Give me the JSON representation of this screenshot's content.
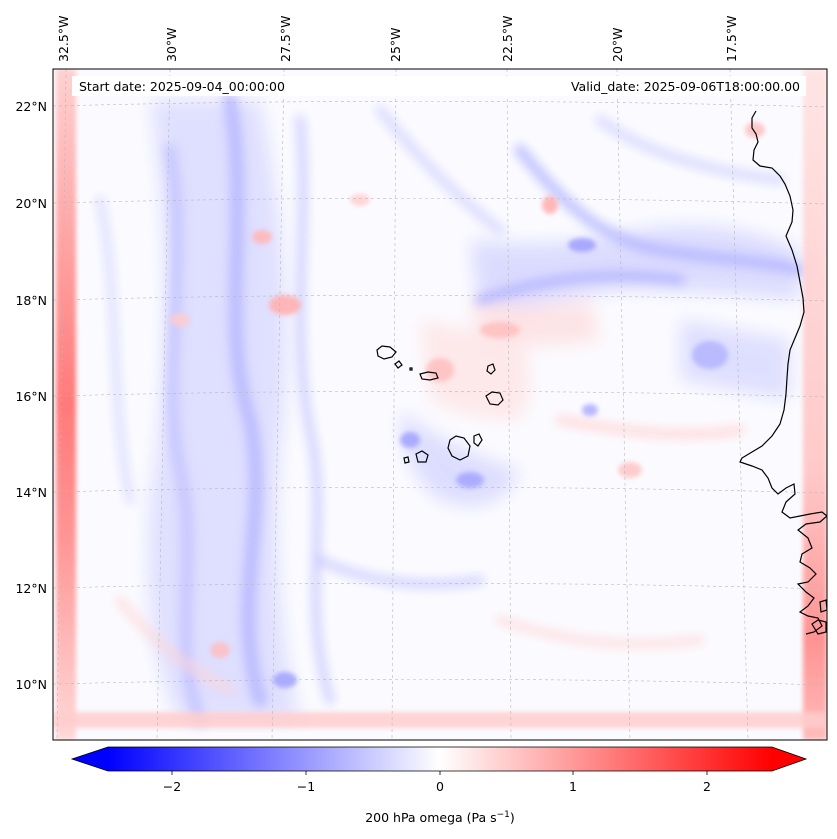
{
  "map": {
    "start_date": "Start date: 2025-09-04_00:00:00",
    "valid_date": "Valid_date: 2025-09-06T18:00:00.00",
    "lon_labels": [
      "32.5°W",
      "30°W",
      "27.5°W",
      "25°W",
      "22.5°W",
      "20°W",
      "17.5°W"
    ],
    "lat_labels": [
      "22°N",
      "20°N",
      "18°N",
      "16°N",
      "14°N",
      "12°N",
      "10°N"
    ]
  },
  "colorbar": {
    "ticks": [
      "−2",
      "−1",
      "0",
      "1",
      "2"
    ],
    "label": "200 hPa omega (Pa s",
    "label_exp": "−1",
    "label_close": ")",
    "min_color": "#0000ff",
    "mid_color": "#ffffff",
    "max_color": "#ff0000"
  },
  "colors": {
    "positive": "#ff0000",
    "negative": "#0000ff",
    "coast": "#000000",
    "grid": "#b0b0b0"
  }
}
